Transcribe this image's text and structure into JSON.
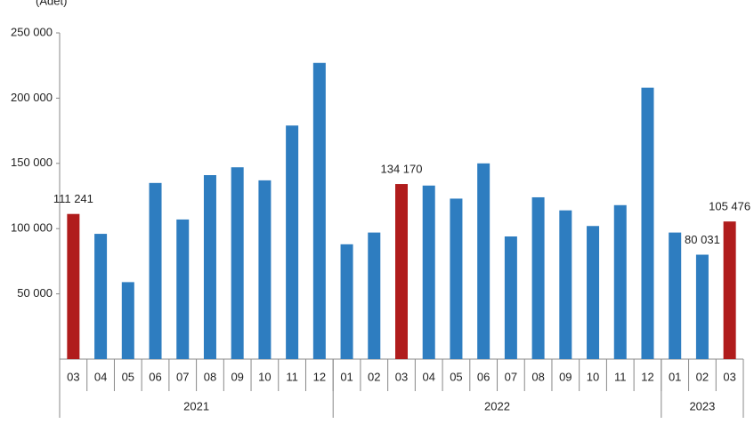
{
  "chart_data": {
    "type": "bar",
    "y_label": "(Adet)",
    "groups": [
      {
        "name": "2021",
        "categories": [
          "03",
          "04",
          "05",
          "06",
          "07",
          "08",
          "09",
          "10",
          "11",
          "12"
        ]
      },
      {
        "name": "2022",
        "categories": [
          "01",
          "02",
          "03",
          "04",
          "05",
          "06",
          "07",
          "08",
          "09",
          "10",
          "11",
          "12"
        ]
      },
      {
        "name": "2023",
        "categories": [
          "01",
          "02",
          "03"
        ]
      }
    ],
    "values": [
      111241,
      96000,
      59000,
      135000,
      107000,
      141000,
      147000,
      137000,
      179000,
      227000,
      88000,
      97000,
      134170,
      133000,
      123000,
      150000,
      94000,
      124000,
      114000,
      102000,
      118000,
      208000,
      97000,
      80031,
      105476
    ],
    "value_labels": [
      "111 241",
      null,
      null,
      null,
      null,
      null,
      null,
      null,
      null,
      null,
      null,
      null,
      "134 170",
      null,
      null,
      null,
      null,
      null,
      null,
      null,
      null,
      null,
      null,
      "80 031",
      "105 476"
    ],
    "colors": [
      "#b01c1c",
      "#2e7dc0",
      "#2e7dc0",
      "#2e7dc0",
      "#2e7dc0",
      "#2e7dc0",
      "#2e7dc0",
      "#2e7dc0",
      "#2e7dc0",
      "#2e7dc0",
      "#2e7dc0",
      "#2e7dc0",
      "#b01c1c",
      "#2e7dc0",
      "#2e7dc0",
      "#2e7dc0",
      "#2e7dc0",
      "#2e7dc0",
      "#2e7dc0",
      "#2e7dc0",
      "#2e7dc0",
      "#2e7dc0",
      "#2e7dc0",
      "#2e7dc0",
      "#b01c1c"
    ],
    "ylim": [
      0,
      250000
    ],
    "yticks": [
      {
        "value": 50000,
        "label": "50 000"
      },
      {
        "value": 100000,
        "label": "100 000"
      },
      {
        "value": 150000,
        "label": "150 000"
      },
      {
        "value": 200000,
        "label": "200 000"
      },
      {
        "value": 250000,
        "label": "250 000"
      }
    ]
  }
}
